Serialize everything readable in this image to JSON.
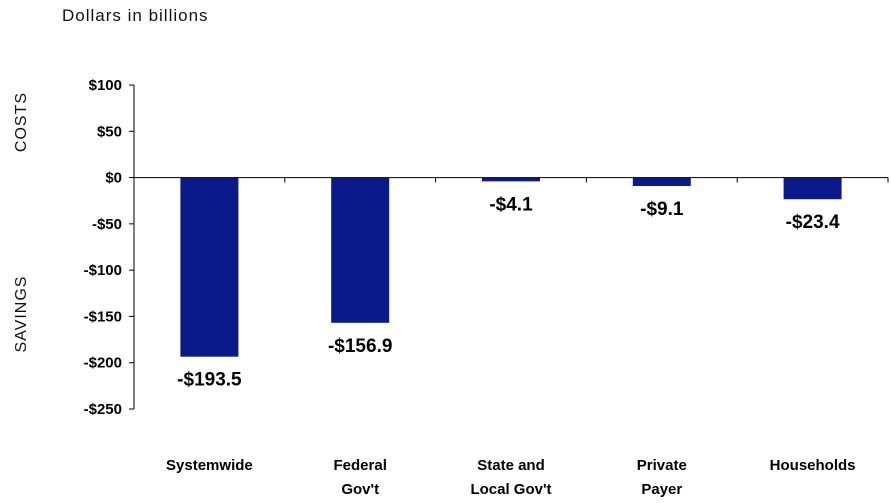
{
  "chart_data": {
    "type": "bar",
    "note": "Dollars in billions",
    "side_labels": {
      "top": "COSTS",
      "bottom": "SAVINGS"
    },
    "categories": [
      [
        "Systemwide"
      ],
      [
        "Federal",
        "Gov't"
      ],
      [
        "State and",
        "Local Gov't"
      ],
      [
        "Private",
        "Payer"
      ],
      [
        "Households"
      ]
    ],
    "values": [
      -193.5,
      -156.9,
      -4.1,
      -9.1,
      -23.4
    ],
    "data_labels": [
      "-$193.5",
      "-$156.9",
      "-$4.1",
      "-$9.1",
      "-$23.4"
    ],
    "yticks": [
      100,
      50,
      0,
      -50,
      -100,
      -150,
      -200,
      -250
    ],
    "ytick_labels": [
      "$100",
      "$50",
      "$0",
      "-$50",
      "-$100",
      "-$150",
      "-$200",
      "-$250"
    ],
    "ylim": [
      -250,
      100
    ],
    "bar_color": "#0a1a8a",
    "grid": false,
    "legend": "none"
  }
}
